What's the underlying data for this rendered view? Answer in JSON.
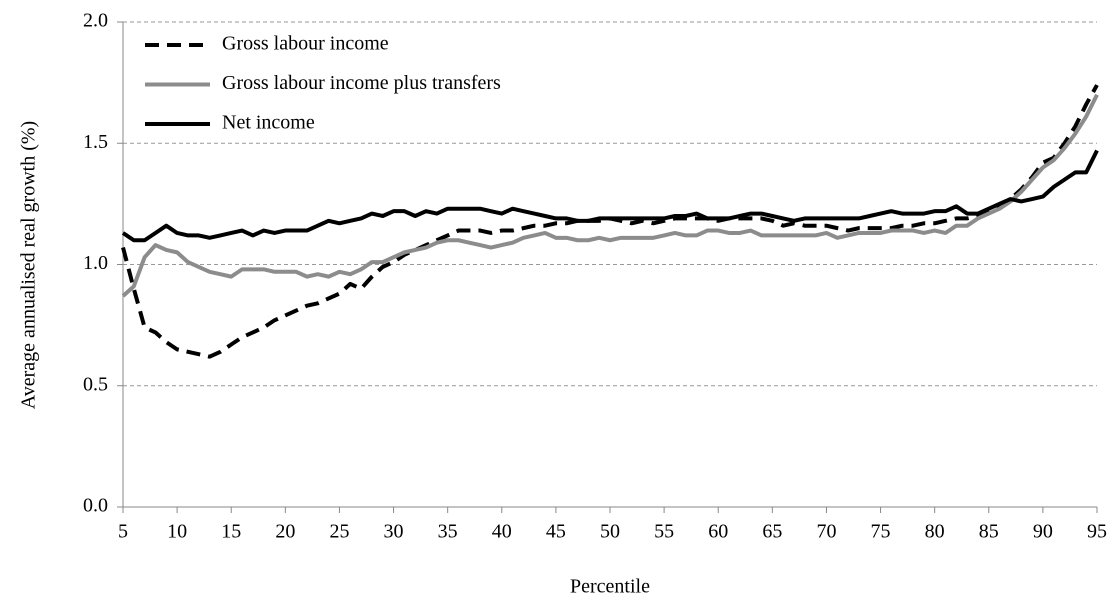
{
  "chart_data": {
    "type": "line",
    "xlabel": "Percentile",
    "ylabel": "Average annualised real growth (%)",
    "x": [
      5,
      6,
      7,
      8,
      9,
      10,
      11,
      12,
      13,
      14,
      15,
      16,
      17,
      18,
      19,
      20,
      21,
      22,
      23,
      24,
      25,
      26,
      27,
      28,
      29,
      30,
      31,
      32,
      33,
      34,
      35,
      36,
      37,
      38,
      39,
      40,
      41,
      42,
      43,
      44,
      45,
      46,
      47,
      48,
      49,
      50,
      51,
      52,
      53,
      54,
      55,
      56,
      57,
      58,
      59,
      60,
      61,
      62,
      63,
      64,
      65,
      66,
      67,
      68,
      69,
      70,
      71,
      72,
      73,
      74,
      75,
      76,
      77,
      78,
      79,
      80,
      81,
      82,
      83,
      84,
      85,
      86,
      87,
      88,
      89,
      90,
      91,
      92,
      93,
      94,
      95
    ],
    "series": [
      {
        "name": "Gross labour income",
        "color": "#000000",
        "line_style": "dashed",
        "values": [
          1.07,
          0.9,
          0.74,
          0.72,
          0.68,
          0.65,
          0.64,
          0.63,
          0.62,
          0.64,
          0.67,
          0.7,
          0.72,
          0.74,
          0.77,
          0.79,
          0.81,
          0.83,
          0.84,
          0.86,
          0.88,
          0.92,
          0.9,
          0.95,
          0.99,
          1.01,
          1.04,
          1.06,
          1.08,
          1.1,
          1.12,
          1.14,
          1.14,
          1.14,
          1.13,
          1.14,
          1.14,
          1.15,
          1.16,
          1.16,
          1.17,
          1.17,
          1.18,
          1.18,
          1.18,
          1.19,
          1.18,
          1.17,
          1.18,
          1.17,
          1.18,
          1.19,
          1.19,
          1.19,
          1.19,
          1.18,
          1.19,
          1.19,
          1.19,
          1.19,
          1.18,
          1.16,
          1.17,
          1.16,
          1.16,
          1.16,
          1.15,
          1.14,
          1.15,
          1.15,
          1.15,
          1.15,
          1.16,
          1.16,
          1.17,
          1.17,
          1.18,
          1.19,
          1.19,
          1.2,
          1.22,
          1.24,
          1.27,
          1.31,
          1.36,
          1.42,
          1.44,
          1.5,
          1.57,
          1.66,
          1.74
        ]
      },
      {
        "name": "Gross labour income plus transfers",
        "color": "#8c8c8c",
        "line_style": "solid",
        "values": [
          0.87,
          0.91,
          1.03,
          1.08,
          1.06,
          1.05,
          1.01,
          0.99,
          0.97,
          0.96,
          0.95,
          0.98,
          0.98,
          0.98,
          0.97,
          0.97,
          0.97,
          0.95,
          0.96,
          0.95,
          0.97,
          0.96,
          0.98,
          1.01,
          1.01,
          1.03,
          1.05,
          1.06,
          1.07,
          1.09,
          1.1,
          1.1,
          1.09,
          1.08,
          1.07,
          1.08,
          1.09,
          1.11,
          1.12,
          1.13,
          1.11,
          1.11,
          1.1,
          1.1,
          1.11,
          1.1,
          1.11,
          1.11,
          1.11,
          1.11,
          1.12,
          1.13,
          1.12,
          1.12,
          1.14,
          1.14,
          1.13,
          1.13,
          1.14,
          1.12,
          1.12,
          1.12,
          1.12,
          1.12,
          1.12,
          1.13,
          1.11,
          1.12,
          1.13,
          1.13,
          1.13,
          1.14,
          1.14,
          1.14,
          1.13,
          1.14,
          1.13,
          1.16,
          1.16,
          1.19,
          1.21,
          1.23,
          1.26,
          1.3,
          1.35,
          1.4,
          1.43,
          1.48,
          1.54,
          1.61,
          1.7
        ]
      },
      {
        "name": "Net income",
        "color": "#000000",
        "line_style": "solid",
        "values": [
          1.13,
          1.1,
          1.1,
          1.13,
          1.16,
          1.13,
          1.12,
          1.12,
          1.11,
          1.12,
          1.13,
          1.14,
          1.12,
          1.14,
          1.13,
          1.14,
          1.14,
          1.14,
          1.16,
          1.18,
          1.17,
          1.18,
          1.19,
          1.21,
          1.2,
          1.22,
          1.22,
          1.2,
          1.22,
          1.21,
          1.23,
          1.23,
          1.23,
          1.23,
          1.22,
          1.21,
          1.23,
          1.22,
          1.21,
          1.2,
          1.19,
          1.19,
          1.18,
          1.18,
          1.19,
          1.19,
          1.19,
          1.19,
          1.19,
          1.19,
          1.19,
          1.2,
          1.2,
          1.21,
          1.19,
          1.19,
          1.19,
          1.2,
          1.21,
          1.21,
          1.2,
          1.19,
          1.18,
          1.19,
          1.19,
          1.19,
          1.19,
          1.19,
          1.19,
          1.2,
          1.21,
          1.22,
          1.21,
          1.21,
          1.21,
          1.22,
          1.22,
          1.24,
          1.21,
          1.21,
          1.23,
          1.25,
          1.27,
          1.26,
          1.27,
          1.28,
          1.32,
          1.35,
          1.38,
          1.38,
          1.47
        ]
      }
    ],
    "xlim": [
      5,
      95
    ],
    "xticks": [
      5,
      10,
      15,
      20,
      25,
      30,
      35,
      40,
      45,
      50,
      55,
      60,
      65,
      70,
      75,
      80,
      85,
      90,
      95
    ],
    "ylim": [
      0,
      2
    ],
    "yticks": [
      {
        "value": 0,
        "label": "0.0"
      },
      {
        "value": 0.5,
        "label": "0.5"
      },
      {
        "value": 1,
        "label": "1.0"
      },
      {
        "value": 1.5,
        "label": "1.5"
      },
      {
        "value": 2,
        "label": "2.0"
      }
    ],
    "grid": true,
    "legend": "top-left"
  }
}
